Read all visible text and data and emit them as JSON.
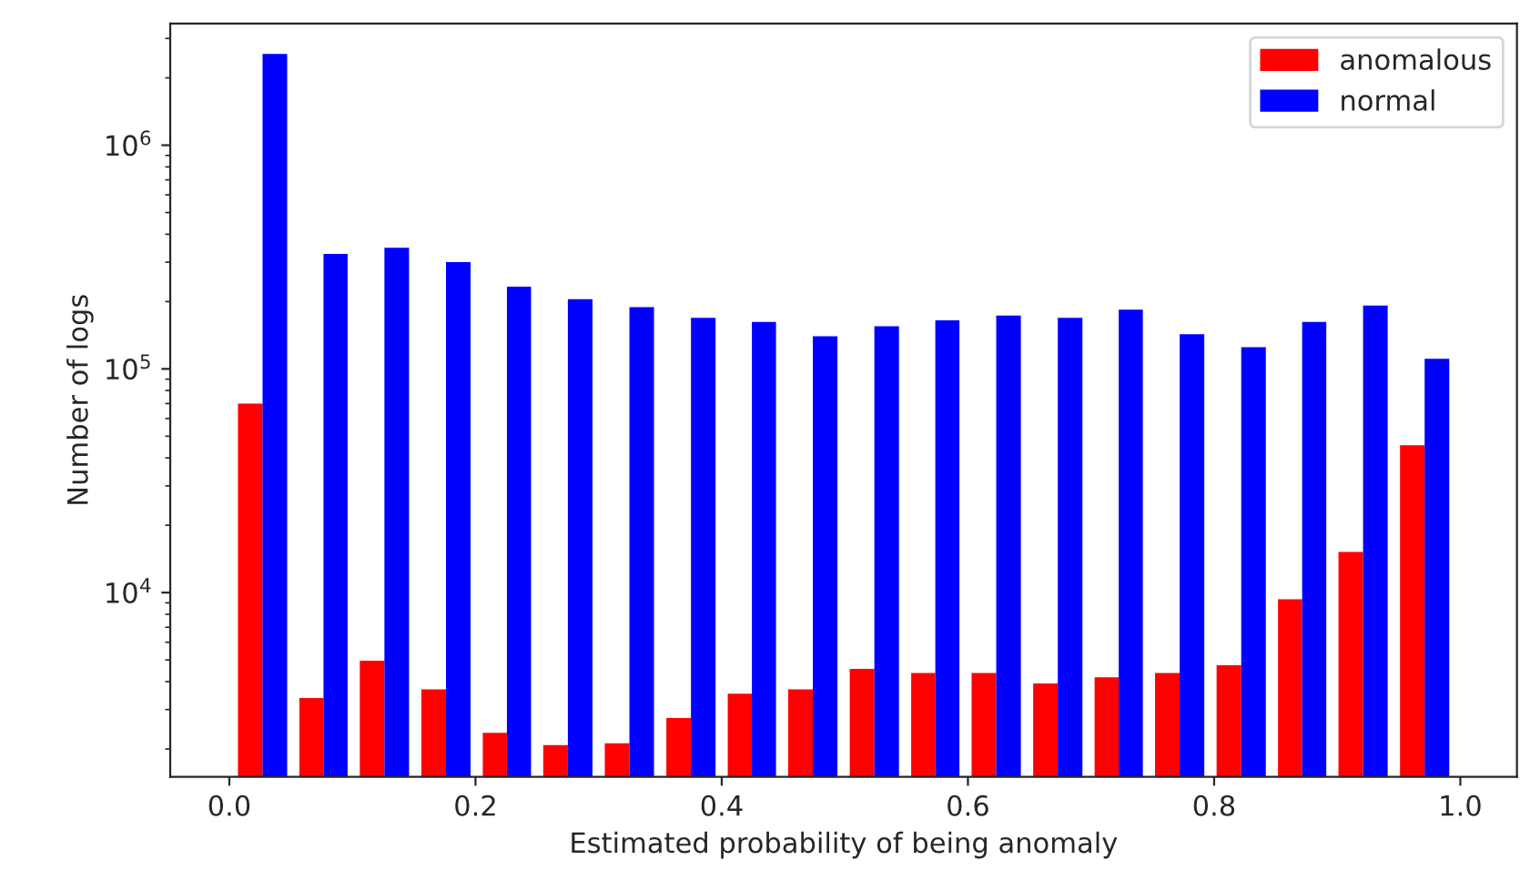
{
  "chart_data": {
    "type": "histogram",
    "xlabel": "Estimated probability of being anomaly",
    "ylabel": "Number of logs",
    "bins": [
      0.002,
      0.052,
      0.101,
      0.151,
      0.201,
      0.25,
      0.3,
      0.35,
      0.4,
      0.449,
      0.499,
      0.549,
      0.598,
      0.648,
      0.698,
      0.747,
      0.797,
      0.847,
      0.896,
      0.946,
      0.996
    ],
    "series": [
      {
        "name": "anomalous",
        "color": "#ff0000",
        "values": [
          70000,
          3380,
          4960,
          3690,
          2360,
          2080,
          2120,
          2750,
          3530,
          3690,
          4560,
          4370,
          4370,
          3930,
          4180,
          4370,
          4740,
          9330,
          15200,
          45600
        ]
      },
      {
        "name": "normal",
        "color": "#0000ff",
        "values": [
          2560000,
          327000,
          348000,
          300000,
          233000,
          205000,
          189000,
          169000,
          162000,
          140000,
          155000,
          165000,
          173000,
          169000,
          184000,
          143000,
          125000,
          162000,
          192000,
          111000
        ]
      }
    ],
    "log": "y",
    "xlim": [
      -0.048,
      1.046
    ],
    "ylim": [
      1500,
      3500000
    ],
    "xticks": [
      {
        "value": 0,
        "label": "0.0"
      },
      {
        "value": 0.2,
        "label": "0.2"
      },
      {
        "value": 0.4,
        "label": "0.4"
      },
      {
        "value": 0.6,
        "label": "0.6"
      },
      {
        "value": 0.8,
        "label": "0.8"
      },
      {
        "value": 1.0,
        "label": "1.0"
      }
    ],
    "yticks": [
      {
        "value": 10000,
        "label": "10$^{4}$"
      },
      {
        "value": 100000,
        "label": "10$^{5}$"
      },
      {
        "value": 1000000,
        "label": "10$^{6}$"
      }
    ],
    "legend": "top right",
    "grid": false
  }
}
